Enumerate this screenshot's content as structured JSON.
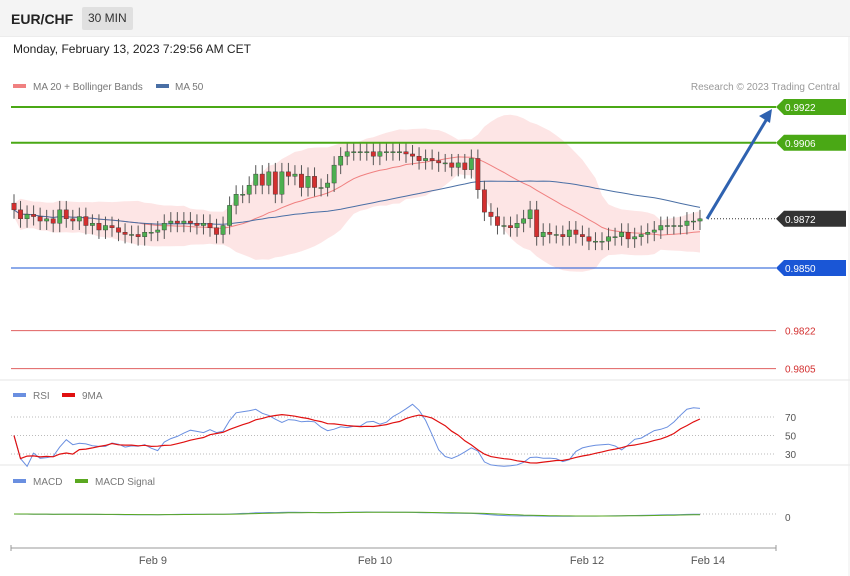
{
  "header": {
    "pair": "EUR/CHF",
    "timeframe": "30 MIN",
    "datetime": "Monday, February 13, 2023 7:29:56 AM CET"
  },
  "legend": {
    "ma": "MA 20 + Bollinger Bands",
    "ma50": "MA 50",
    "copyright": "Research © 2023 Trading Central"
  },
  "rsi_legend": {
    "rsi": "RSI",
    "ma": "9MA"
  },
  "macd_legend": {
    "macd": "MACD",
    "signal": "MACD Signal"
  },
  "colors": {
    "up": "#4caf50",
    "down": "#d32f2f",
    "green": "#4aa815",
    "blue": "#1a56d6",
    "red": "#e06060",
    "ma20": "#f08080",
    "ma50": "#4a6fa5",
    "band": "#fde5e5",
    "arrow": "#2f62b0",
    "rsi": "#6a8fe0",
    "rsi_ma": "#e01010",
    "macd": "#6a8fe0",
    "macd_signal": "#5aa820"
  },
  "chart_data": [
    {
      "type": "candlestick",
      "pair": "EUR/CHF",
      "interval": "30 MIN",
      "x_ticks": [
        "Feb 9",
        "Feb 10",
        "Feb 12",
        "Feb 14"
      ],
      "levels": [
        {
          "value": 0.9922,
          "label": "0.9922",
          "style": "resistance"
        },
        {
          "value": 0.9906,
          "label": "0.9906",
          "style": "resistance"
        },
        {
          "value": 0.9872,
          "label": "0.9872",
          "style": "current"
        },
        {
          "value": 0.985,
          "label": "0.9850",
          "style": "pivot"
        },
        {
          "value": 0.9822,
          "label": "0.9822",
          "style": "support"
        },
        {
          "value": 0.9805,
          "label": "0.9805",
          "style": "support"
        }
      ],
      "projection": {
        "from": 0.9872,
        "to": 0.9922
      },
      "closes": [
        0.9876,
        0.9872,
        0.9874,
        0.9873,
        0.9871,
        0.9872,
        0.987,
        0.9876,
        0.9872,
        0.9871,
        0.9873,
        0.9869,
        0.987,
        0.9867,
        0.9869,
        0.9868,
        0.9866,
        0.9865,
        0.9865,
        0.9864,
        0.9866,
        0.9866,
        0.9867,
        0.987,
        0.9871,
        0.987,
        0.9871,
        0.987,
        0.9869,
        0.987,
        0.9868,
        0.9865,
        0.9869,
        0.9878,
        0.9883,
        0.9883,
        0.9887,
        0.9892,
        0.9887,
        0.9893,
        0.9883,
        0.9893,
        0.9891,
        0.9892,
        0.9886,
        0.9891,
        0.9886,
        0.9886,
        0.9888,
        0.9896,
        0.99,
        0.9902,
        0.9902,
        0.9902,
        0.9902,
        0.99,
        0.9902,
        0.9902,
        0.9902,
        0.9902,
        0.9901,
        0.99,
        0.9898,
        0.9899,
        0.9898,
        0.9897,
        0.9897,
        0.9895,
        0.9897,
        0.9894,
        0.9899,
        0.9885,
        0.9875,
        0.9873,
        0.9869,
        0.9869,
        0.9868,
        0.987,
        0.9872,
        0.9876,
        0.9864,
        0.9866,
        0.9865,
        0.9865,
        0.9864,
        0.9867,
        0.9865,
        0.9864,
        0.9862,
        0.9862,
        0.9862,
        0.9864,
        0.9864,
        0.9866,
        0.9863,
        0.9864,
        0.9865,
        0.9866,
        0.9867,
        0.9869,
        0.9869,
        0.9869,
        0.9869,
        0.9871,
        0.9871,
        0.9872
      ],
      "rsi_levels": [
        70,
        50,
        30
      ],
      "macd_levels": [
        0
      ]
    }
  ]
}
